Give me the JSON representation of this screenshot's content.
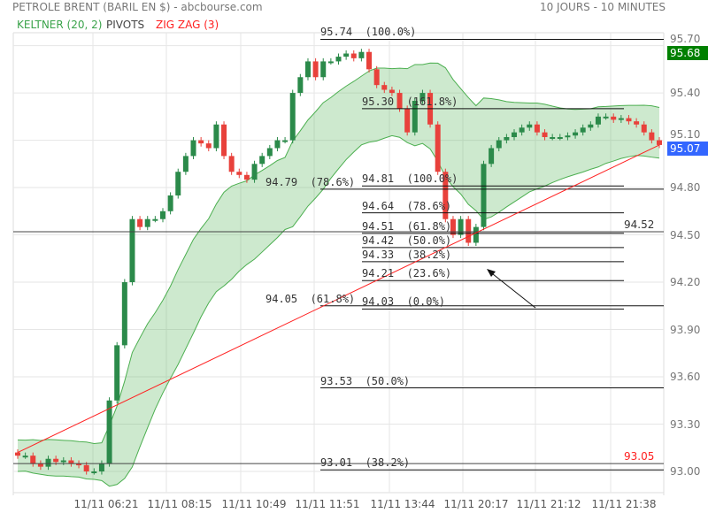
{
  "header": {
    "title": "PETROLE BRENT (BARIL EN $) - abcbourse.com",
    "period": "10 JOURS - 10 MINUTES"
  },
  "legend": [
    {
      "label": "KELTNER (20, 2)",
      "color": "#3aa34a"
    },
    {
      "label": "PIVOTS",
      "color": "#444444"
    },
    {
      "label": "ZIG ZAG (3)",
      "color": "#ff2020"
    }
  ],
  "chart_data": {
    "type": "candlestick",
    "title": "PETROLE BRENT (BARIL EN $) - abcbourse.com",
    "ylim": [
      92.95,
      95.8
    ],
    "yticks": [
      "95.70",
      "95.40",
      "95.10",
      "94.80",
      "94.50",
      "94.20",
      "93.90",
      "93.60",
      "93.30",
      "93.00"
    ],
    "xticks": [
      "11/11 06:21",
      "11/11 08:15",
      "11/11 10:49",
      "11/11 11:51",
      "11/11 13:44",
      "11/11 20:17",
      "11/11 21:12",
      "11/11 21:38"
    ],
    "close": [
      93.1,
      93.1,
      93.05,
      93.03,
      93.08,
      93.06,
      93.07,
      93.05,
      93.04,
      93.0,
      93.0,
      93.05,
      93.45,
      93.8,
      94.2,
      94.6,
      94.55,
      94.6,
      94.6,
      94.65,
      94.75,
      94.9,
      95.0,
      95.1,
      95.08,
      95.05,
      95.2,
      95.0,
      94.9,
      94.88,
      94.85,
      94.95,
      95.0,
      95.05,
      95.1,
      95.1,
      95.4,
      95.5,
      95.6,
      95.5,
      95.6,
      95.6,
      95.63,
      95.65,
      95.62,
      95.66,
      95.55,
      95.45,
      95.42,
      95.4,
      95.3,
      95.15,
      95.35,
      95.4,
      95.2,
      94.9,
      94.6,
      94.5,
      94.6,
      94.45,
      94.55,
      94.95,
      95.05,
      95.1,
      95.12,
      95.15,
      95.18,
      95.2,
      95.15,
      95.12,
      95.12,
      95.12,
      95.13,
      95.15,
      95.18,
      95.2,
      95.25,
      95.25,
      95.23,
      95.24,
      95.22,
      95.2,
      95.15,
      95.1,
      95.07
    ],
    "zigzag": [
      [
        0,
        93.12
      ],
      [
        84,
        95.07
      ]
    ],
    "pivots": [
      {
        "label": "94.52",
        "value": 94.52
      },
      {
        "label": "93.05",
        "value": 93.05
      }
    ],
    "fibonacci": [
      {
        "label": "95.74  (100.0%)",
        "value": 95.74,
        "group": "wide"
      },
      {
        "label": "95.30  (161.8%)",
        "value": 95.3,
        "group": "narrow"
      },
      {
        "label": "94.81  (100.0%)",
        "value": 94.81,
        "group": "narrow"
      },
      {
        "label": "94.79  (78.6%)",
        "value": 94.79,
        "group": "wide"
      },
      {
        "label": "94.64  (78.6%)",
        "value": 94.64,
        "group": "narrow"
      },
      {
        "label": "94.51  (61.8%)",
        "value": 94.51,
        "group": "narrow"
      },
      {
        "label": "94.42  (50.0%)",
        "value": 94.42,
        "group": "narrow"
      },
      {
        "label": "94.33  (38.2%)",
        "value": 94.33,
        "group": "narrow"
      },
      {
        "label": "94.21  (23.6%)",
        "value": 94.21,
        "group": "narrow"
      },
      {
        "label": "94.05  (61.8%)",
        "value": 94.05,
        "group": "wide"
      },
      {
        "label": "94.03  (0.0%)",
        "value": 94.03,
        "group": "narrow"
      },
      {
        "label": "93.53  (50.0%)",
        "value": 93.53,
        "group": "wide"
      },
      {
        "label": "93.01  (38.2%)",
        "value": 93.01,
        "group": "wide"
      }
    ],
    "last_high_tag": {
      "label": "95.68",
      "color": "#008000"
    },
    "last_price_tag": {
      "label": "95.07",
      "color": "#3366ff"
    },
    "colors": {
      "up": "#2b8a4a",
      "down": "#e8413b",
      "band": "#4caf50"
    }
  }
}
